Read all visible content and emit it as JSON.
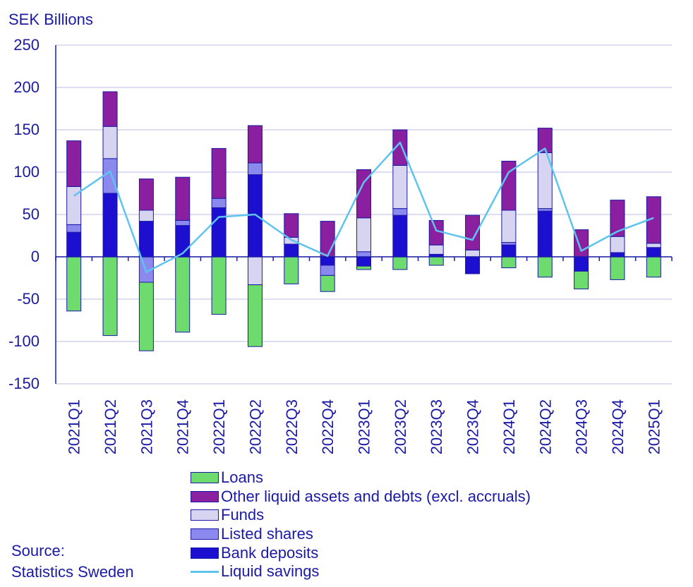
{
  "chart_data": {
    "type": "bar",
    "stacked": true,
    "ylabel": "SEK Billions",
    "ylim": [
      -150,
      250
    ],
    "yticks": [
      250,
      200,
      150,
      100,
      50,
      0,
      -50,
      -100,
      -150
    ],
    "grid": true,
    "categories": [
      "2021Q1",
      "2021Q2",
      "2021Q3",
      "2021Q4",
      "2022Q1",
      "2022Q2",
      "2022Q3",
      "2022Q4",
      "2023Q1",
      "2023Q2",
      "2023Q3",
      "2023Q4",
      "2024Q1",
      "2024Q2",
      "2024Q3",
      "2024Q4",
      "2025Q1"
    ],
    "series": [
      {
        "name": "Loans",
        "color": "#6ddb6d",
        "kind": "bar",
        "values": [
          -64,
          -93,
          -81,
          -89,
          -68,
          -73,
          -32,
          -19,
          -4,
          -15,
          -10,
          0,
          -13,
          -24,
          -21,
          -27,
          -24
        ]
      },
      {
        "name": "Other liquid assets and debts (excl. accruals)",
        "color": "#8a1fa0",
        "kind": "bar",
        "values": [
          54,
          41,
          37,
          51,
          59,
          44,
          28,
          42,
          57,
          42,
          29,
          41,
          58,
          29,
          32,
          43,
          55
        ]
      },
      {
        "name": "Funds",
        "color": "#d6d4f0",
        "kind": "bar",
        "values": [
          45,
          38,
          13,
          0,
          0,
          -33,
          8,
          0,
          40,
          51,
          11,
          8,
          38,
          66,
          0,
          19,
          5
        ]
      },
      {
        "name": "Listed shares",
        "color": "#8c89ee",
        "kind": "bar",
        "values": [
          9,
          41,
          -30,
          6,
          11,
          14,
          0,
          -12,
          6,
          8,
          0,
          0,
          3,
          3,
          0,
          0,
          0
        ]
      },
      {
        "name": "Bank deposits",
        "color": "#1c0fcf",
        "kind": "bar",
        "values": [
          29,
          75,
          42,
          37,
          58,
          97,
          15,
          -10,
          -11,
          49,
          3,
          -20,
          14,
          54,
          -17,
          5,
          11
        ]
      },
      {
        "name": "Liquid savings",
        "color": "#5ec4ef",
        "kind": "line",
        "values": [
          72,
          101,
          -18,
          4,
          47,
          50,
          20,
          1,
          88,
          135,
          31,
          20,
          100,
          128,
          7,
          30,
          46
        ]
      }
    ],
    "legend_order": [
      "Loans",
      "Other liquid assets and debts (excl. accruals)",
      "Funds",
      "Listed shares",
      "Bank deposits",
      "Liquid savings"
    ]
  },
  "source": {
    "label": "Source:",
    "text": "Statistics Sweden"
  }
}
